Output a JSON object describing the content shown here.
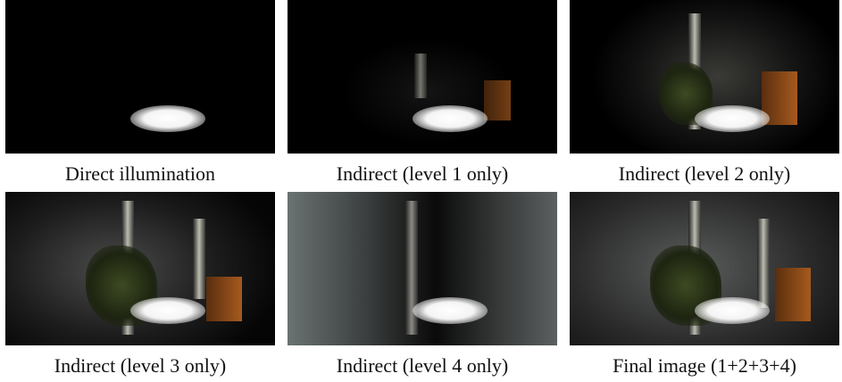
{
  "figure": {
    "panels": [
      {
        "caption": "Direct illumination"
      },
      {
        "caption": "Indirect (level 1 only)"
      },
      {
        "caption": "Indirect (level 2 only)"
      },
      {
        "caption": "Indirect (level 3 only)"
      },
      {
        "caption": "Indirect (level 4 only)"
      },
      {
        "caption": "Final image (1+2+3+4)"
      }
    ]
  }
}
